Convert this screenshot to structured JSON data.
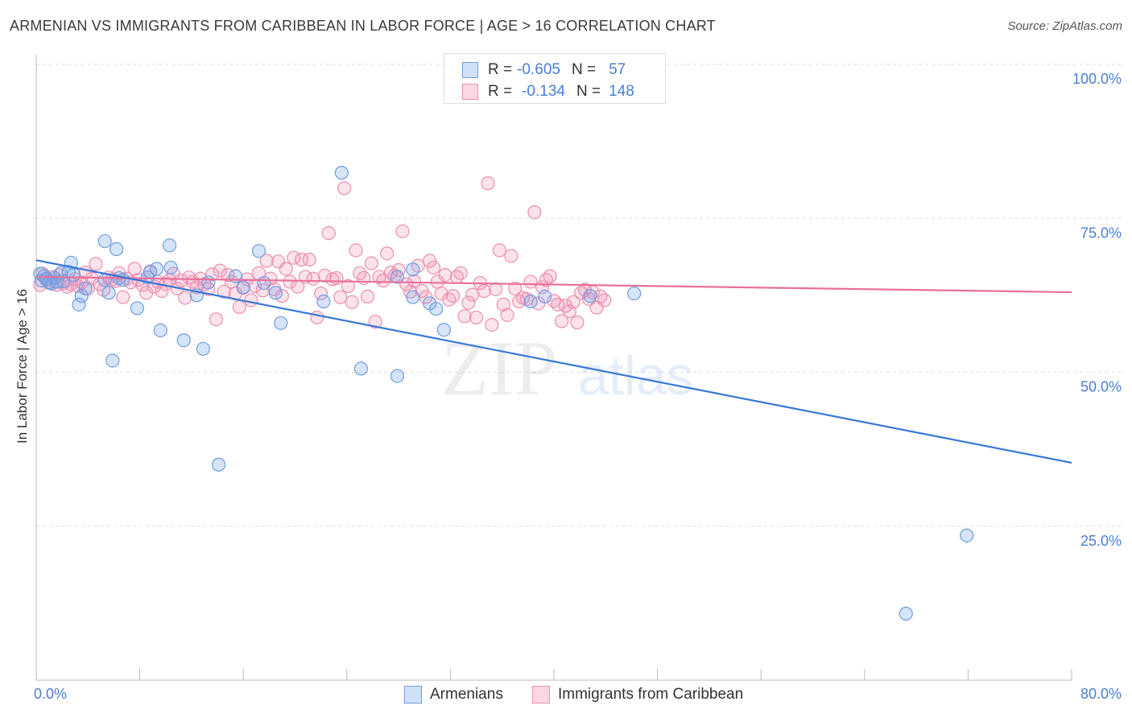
{
  "header": {
    "title": "ARMENIAN VS IMMIGRANTS FROM CARIBBEAN IN LABOR FORCE | AGE > 16 CORRELATION CHART",
    "source": "Source: ZipAtlas.com"
  },
  "watermark": {
    "zip": "ZIP",
    "atlas": "atlas"
  },
  "legend_top": {
    "rows": [
      {
        "r_label": "R =",
        "r_value": "-0.605",
        "n_label": "N =",
        "n_value": "57"
      },
      {
        "r_label": "R =",
        "r_value": "-0.134",
        "n_label": "N =",
        "n_value": "148"
      }
    ]
  },
  "legend_bottom": {
    "armenians": "Armenians",
    "caribbean": "Immigrants from Caribbean"
  },
  "axis": {
    "ylabel": "In Labor Force | Age > 16",
    "x_min_label": "0.0%",
    "x_max_label": "80.0%"
  },
  "colors": {
    "blue_fill": "rgba(120,165,230,0.30)",
    "blue_stroke": "#6f9ee0",
    "blue_line": "#3878d8",
    "pink_fill": "rgba(240,140,175,0.25)",
    "pink_stroke": "#ec8fb0",
    "pink_line": "#e8709a",
    "tick_text": "#4a7fd4",
    "grid": "#dedede"
  },
  "chart_data": {
    "type": "scatter",
    "title": "ARMENIAN VS IMMIGRANTS FROM CARIBBEAN IN LABOR FORCE | AGE > 16 CORRELATION CHART",
    "xlabel": "",
    "ylabel": "In Labor Force | Age > 16",
    "xlim": [
      0,
      80
    ],
    "ylim": [
      0,
      105
    ],
    "y_ticks": [
      25,
      50,
      75,
      100
    ],
    "y_tick_labels": [
      "25.0%",
      "50.0%",
      "75.0%",
      "100.0%"
    ],
    "x_tick_labels": [
      "0.0%",
      "80.0%"
    ],
    "grid": true,
    "legend": "top-center",
    "series": [
      {
        "name": "Armenians",
        "r": -0.605,
        "n": 57,
        "trend": {
          "x": [
            0,
            80
          ],
          "y": [
            68.2,
            35.3
          ]
        },
        "points": [
          [
            0.3,
            66.0
          ],
          [
            0.4,
            64.9
          ],
          [
            0.6,
            65.6
          ],
          [
            0.8,
            65.2
          ],
          [
            1.0,
            64.6
          ],
          [
            1.2,
            64.4
          ],
          [
            1.4,
            65.3
          ],
          [
            1.6,
            64.7
          ],
          [
            1.9,
            66.1
          ],
          [
            2.1,
            64.8
          ],
          [
            2.5,
            66.3
          ],
          [
            2.7,
            67.8
          ],
          [
            2.9,
            65.8
          ],
          [
            3.3,
            61.0
          ],
          [
            3.5,
            62.4
          ],
          [
            3.8,
            63.6
          ],
          [
            5.3,
            71.3
          ],
          [
            5.3,
            65.0
          ],
          [
            5.6,
            62.9
          ],
          [
            5.9,
            51.9
          ],
          [
            6.2,
            70.0
          ],
          [
            6.4,
            65.3
          ],
          [
            6.7,
            65.0
          ],
          [
            7.8,
            60.4
          ],
          [
            8.6,
            65.4
          ],
          [
            8.8,
            66.3
          ],
          [
            9.3,
            66.8
          ],
          [
            9.6,
            56.8
          ],
          [
            10.3,
            70.6
          ],
          [
            10.4,
            67.0
          ],
          [
            11.4,
            55.2
          ],
          [
            12.4,
            62.5
          ],
          [
            12.9,
            53.8
          ],
          [
            13.3,
            64.6
          ],
          [
            14.1,
            35.0
          ],
          [
            15.4,
            65.6
          ],
          [
            16.0,
            63.8
          ],
          [
            17.2,
            69.7
          ],
          [
            17.6,
            64.5
          ],
          [
            18.5,
            62.9
          ],
          [
            18.9,
            58.0
          ],
          [
            22.2,
            61.5
          ],
          [
            23.6,
            82.4
          ],
          [
            25.1,
            50.6
          ],
          [
            27.9,
            49.4
          ],
          [
            27.9,
            65.5
          ],
          [
            29.1,
            66.7
          ],
          [
            29.1,
            62.2
          ],
          [
            30.4,
            61.2
          ],
          [
            30.9,
            60.3
          ],
          [
            31.5,
            56.9
          ],
          [
            38.2,
            61.5
          ],
          [
            39.3,
            62.3
          ],
          [
            42.8,
            62.4
          ],
          [
            46.2,
            62.8
          ],
          [
            67.2,
            10.8
          ],
          [
            71.9,
            23.5
          ]
        ]
      },
      {
        "name": "Immigrants from Caribbean",
        "r": -0.134,
        "n": 148,
        "trend": {
          "x": [
            0,
            80
          ],
          "y": [
            65.5,
            63.0
          ]
        },
        "points": [
          [
            0.3,
            64.2
          ],
          [
            0.5,
            66.0
          ],
          [
            0.8,
            65.0
          ],
          [
            1.0,
            64.5
          ],
          [
            1.3,
            65.5
          ],
          [
            1.6,
            64.2
          ],
          [
            1.8,
            65.8
          ],
          [
            2.1,
            64.5
          ],
          [
            2.4,
            63.9
          ],
          [
            2.7,
            64.3
          ],
          [
            3.0,
            65.1
          ],
          [
            3.2,
            64.0
          ],
          [
            3.5,
            64.6
          ],
          [
            3.8,
            66.2
          ],
          [
            4.0,
            63.6
          ],
          [
            4.3,
            65.2
          ],
          [
            4.6,
            67.6
          ],
          [
            4.9,
            64.3
          ],
          [
            5.2,
            63.4
          ],
          [
            5.6,
            65.4
          ],
          [
            5.9,
            65.1
          ],
          [
            6.1,
            64.8
          ],
          [
            6.4,
            66.1
          ],
          [
            6.7,
            62.2
          ],
          [
            7.0,
            65.2
          ],
          [
            7.3,
            64.6
          ],
          [
            7.6,
            66.8
          ],
          [
            7.9,
            65.0
          ],
          [
            8.2,
            64.2
          ],
          [
            8.5,
            62.9
          ],
          [
            8.8,
            66.4
          ],
          [
            9.1,
            63.9
          ],
          [
            9.4,
            64.7
          ],
          [
            9.7,
            63.2
          ],
          [
            10.0,
            64.3
          ],
          [
            10.3,
            65.0
          ],
          [
            10.6,
            66.0
          ],
          [
            10.9,
            63.6
          ],
          [
            11.2,
            64.9
          ],
          [
            11.5,
            62.1
          ],
          [
            11.8,
            65.4
          ],
          [
            12.1,
            64.7
          ],
          [
            12.4,
            63.8
          ],
          [
            12.7,
            65.2
          ],
          [
            13.0,
            64.3
          ],
          [
            13.3,
            63.5
          ],
          [
            13.6,
            65.9
          ],
          [
            13.9,
            58.6
          ],
          [
            14.2,
            66.5
          ],
          [
            14.5,
            63.1
          ],
          [
            14.8,
            65.8
          ],
          [
            15.1,
            64.7
          ],
          [
            15.4,
            62.8
          ],
          [
            15.7,
            60.6
          ],
          [
            16.0,
            63.7
          ],
          [
            16.3,
            65.1
          ],
          [
            16.6,
            61.7
          ],
          [
            16.9,
            64.0
          ],
          [
            17.2,
            66.1
          ],
          [
            17.5,
            63.3
          ],
          [
            17.8,
            68.1
          ],
          [
            18.1,
            65.2
          ],
          [
            18.4,
            63.5
          ],
          [
            18.7,
            68.0
          ],
          [
            19.0,
            62.4
          ],
          [
            19.3,
            66.8
          ],
          [
            19.6,
            64.7
          ],
          [
            19.9,
            68.6
          ],
          [
            20.2,
            63.9
          ],
          [
            20.5,
            68.3
          ],
          [
            20.8,
            65.5
          ],
          [
            21.1,
            68.3
          ],
          [
            21.4,
            65.2
          ],
          [
            21.7,
            58.9
          ],
          [
            22.0,
            62.8
          ],
          [
            22.3,
            65.7
          ],
          [
            22.6,
            72.6
          ],
          [
            22.9,
            65.1
          ],
          [
            23.2,
            65.3
          ],
          [
            23.5,
            62.2
          ],
          [
            23.8,
            79.9
          ],
          [
            24.1,
            64.0
          ],
          [
            24.4,
            61.4
          ],
          [
            24.7,
            69.8
          ],
          [
            25.0,
            66.1
          ],
          [
            25.3,
            65.3
          ],
          [
            25.6,
            62.3
          ],
          [
            25.9,
            67.7
          ],
          [
            26.2,
            58.2
          ],
          [
            26.5,
            65.5
          ],
          [
            26.8,
            64.9
          ],
          [
            27.1,
            69.3
          ],
          [
            27.4,
            66.2
          ],
          [
            27.7,
            65.7
          ],
          [
            28.0,
            66.6
          ],
          [
            28.3,
            72.9
          ],
          [
            28.6,
            64.3
          ],
          [
            28.9,
            63.1
          ],
          [
            29.2,
            64.8
          ],
          [
            29.5,
            67.3
          ],
          [
            29.8,
            63.2
          ],
          [
            30.1,
            62.2
          ],
          [
            30.4,
            68.1
          ],
          [
            30.7,
            67.0
          ],
          [
            31.0,
            64.7
          ],
          [
            31.3,
            62.8
          ],
          [
            31.6,
            65.8
          ],
          [
            31.9,
            61.8
          ],
          [
            32.2,
            62.4
          ],
          [
            32.5,
            65.5
          ],
          [
            32.8,
            66.1
          ],
          [
            33.1,
            59.1
          ],
          [
            33.4,
            61.3
          ],
          [
            33.7,
            62.6
          ],
          [
            34.0,
            58.9
          ],
          [
            34.3,
            64.5
          ],
          [
            34.6,
            63.2
          ],
          [
            34.9,
            80.7
          ],
          [
            35.2,
            57.7
          ],
          [
            35.5,
            63.5
          ],
          [
            35.8,
            69.8
          ],
          [
            36.1,
            61.0
          ],
          [
            36.4,
            59.3
          ],
          [
            36.7,
            68.9
          ],
          [
            37.0,
            63.6
          ],
          [
            37.3,
            61.5
          ],
          [
            37.6,
            62.1
          ],
          [
            37.9,
            61.9
          ],
          [
            38.2,
            64.7
          ],
          [
            38.5,
            76.0
          ],
          [
            38.8,
            61.2
          ],
          [
            39.1,
            63.8
          ],
          [
            39.4,
            65.0
          ],
          [
            39.7,
            65.6
          ],
          [
            40.0,
            61.6
          ],
          [
            40.3,
            61.0
          ],
          [
            40.6,
            58.3
          ],
          [
            40.9,
            60.8
          ],
          [
            41.2,
            59.9
          ],
          [
            41.5,
            61.4
          ],
          [
            41.8,
            58.1
          ],
          [
            42.1,
            62.9
          ],
          [
            42.4,
            63.4
          ],
          [
            42.7,
            61.9
          ],
          [
            43.0,
            63.0
          ],
          [
            43.3,
            60.5
          ],
          [
            43.6,
            62.3
          ],
          [
            43.9,
            61.7
          ]
        ]
      }
    ]
  }
}
